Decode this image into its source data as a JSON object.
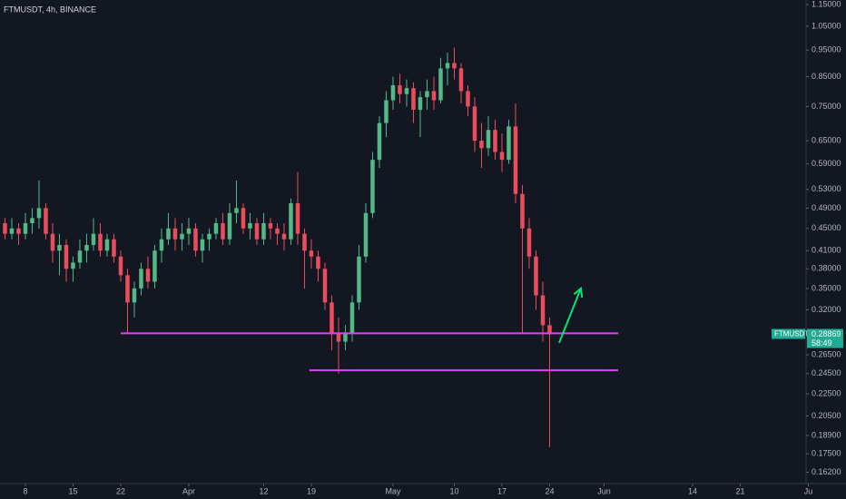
{
  "chart_data": {
    "type": "candlestick",
    "title": "FTMUSDT, 4h, BINANCE",
    "symbol": "FTMUSDT",
    "countdown": "58:49",
    "log_scale": true,
    "up_color": "#53b987",
    "down_color": "#eb4d5c",
    "xlim": [
      3.27,
      121.67
    ],
    "ylim": [
      0.1545,
      1.172
    ],
    "xticks": [
      {
        "value": 7,
        "label": "8"
      },
      {
        "value": 14,
        "label": "15"
      },
      {
        "value": 21,
        "label": "22"
      },
      {
        "value": 31,
        "label": "Apr"
      },
      {
        "value": 42,
        "label": "12"
      },
      {
        "value": 49,
        "label": "19"
      },
      {
        "value": 61,
        "label": "May"
      },
      {
        "value": 70,
        "label": "10"
      },
      {
        "value": 77,
        "label": "17"
      },
      {
        "value": 84,
        "label": "24"
      },
      {
        "value": 92,
        "label": "Jun"
      },
      {
        "value": 105,
        "label": "14"
      },
      {
        "value": 112,
        "label": "21"
      },
      {
        "value": 122,
        "label": "Ju"
      }
    ],
    "yticks": [
      {
        "value": 1.15,
        "label": "1.15000"
      },
      {
        "value": 1.05,
        "label": "1.05000"
      },
      {
        "value": 0.95,
        "label": "0.95000"
      },
      {
        "value": 0.85,
        "label": "0.85000"
      },
      {
        "value": 0.75,
        "label": "0.75000"
      },
      {
        "value": 0.65,
        "label": "0.65000"
      },
      {
        "value": 0.59,
        "label": "0.59000"
      },
      {
        "value": 0.53,
        "label": "0.53000"
      },
      {
        "value": 0.49,
        "label": "0.49000"
      },
      {
        "value": 0.45,
        "label": "0.45000"
      },
      {
        "value": 0.41,
        "label": "0.41000"
      },
      {
        "value": 0.38,
        "label": "0.38000"
      },
      {
        "value": 0.35,
        "label": "0.35000"
      },
      {
        "value": 0.32,
        "label": "0.32000"
      },
      {
        "value": 0.265,
        "label": "0.26500"
      },
      {
        "value": 0.245,
        "label": "0.24500"
      },
      {
        "value": 0.225,
        "label": "0.22500"
      },
      {
        "value": 0.205,
        "label": "0.20500"
      },
      {
        "value": 0.189,
        "label": "0.18900"
      },
      {
        "value": 0.175,
        "label": "0.17500"
      },
      {
        "value": 0.162,
        "label": "0.16200"
      }
    ],
    "x": [
      3,
      4,
      5,
      6,
      7,
      8,
      9,
      10,
      11,
      12,
      13,
      14,
      15,
      16,
      17,
      18,
      19,
      20,
      21,
      22,
      23,
      24,
      25,
      26,
      27,
      28,
      29,
      30,
      31,
      32,
      33,
      34,
      35,
      36,
      37,
      38,
      39,
      40,
      41,
      42,
      43,
      44,
      45,
      46,
      47,
      48,
      49,
      50,
      51,
      52,
      53,
      54,
      55,
      56,
      57,
      58,
      59,
      60,
      61,
      62,
      63,
      64,
      65,
      66,
      67,
      68,
      69,
      70,
      71,
      72,
      73,
      74,
      75,
      76,
      77,
      78,
      79,
      80,
      81,
      82,
      83,
      84
    ],
    "open": [
      0.46,
      0.46,
      0.44,
      0.45,
      0.44,
      0.46,
      0.47,
      0.49,
      0.44,
      0.41,
      0.42,
      0.38,
      0.39,
      0.41,
      0.42,
      0.44,
      0.41,
      0.43,
      0.4,
      0.37,
      0.33,
      0.35,
      0.38,
      0.36,
      0.41,
      0.43,
      0.45,
      0.43,
      0.44,
      0.45,
      0.41,
      0.43,
      0.44,
      0.46,
      0.43,
      0.48,
      0.49,
      0.45,
      0.46,
      0.43,
      0.46,
      0.45,
      0.44,
      0.43,
      0.5,
      0.44,
      0.41,
      0.4,
      0.38,
      0.33,
      0.29,
      0.28,
      0.29,
      0.33,
      0.4,
      0.48,
      0.6,
      0.7,
      0.77,
      0.82,
      0.79,
      0.81,
      0.74,
      0.78,
      0.8,
      0.77,
      0.88,
      0.9,
      0.88,
      0.8,
      0.75,
      0.65,
      0.63,
      0.68,
      0.62,
      0.6,
      0.69,
      0.52,
      0.45,
      0.4,
      0.34,
      0.3
    ],
    "high": [
      0.48,
      0.47,
      0.47,
      0.46,
      0.48,
      0.49,
      0.55,
      0.5,
      0.46,
      0.44,
      0.43,
      0.4,
      0.43,
      0.44,
      0.47,
      0.46,
      0.44,
      0.44,
      0.41,
      0.38,
      0.36,
      0.39,
      0.4,
      0.42,
      0.45,
      0.48,
      0.47,
      0.46,
      0.47,
      0.46,
      0.44,
      0.45,
      0.47,
      0.48,
      0.5,
      0.55,
      0.5,
      0.48,
      0.47,
      0.48,
      0.47,
      0.46,
      0.46,
      0.51,
      0.57,
      0.45,
      0.43,
      0.41,
      0.39,
      0.34,
      0.31,
      0.3,
      0.34,
      0.42,
      0.5,
      0.62,
      0.72,
      0.8,
      0.85,
      0.86,
      0.84,
      0.83,
      0.8,
      0.84,
      0.85,
      0.92,
      0.94,
      0.96,
      0.9,
      0.82,
      0.78,
      0.7,
      0.72,
      0.71,
      0.67,
      0.71,
      0.76,
      0.54,
      0.47,
      0.41,
      0.36,
      0.31
    ],
    "low": [
      0.44,
      0.43,
      0.43,
      0.42,
      0.43,
      0.44,
      0.45,
      0.43,
      0.39,
      0.37,
      0.36,
      0.36,
      0.38,
      0.39,
      0.41,
      0.4,
      0.4,
      0.39,
      0.36,
      0.29,
      0.31,
      0.34,
      0.35,
      0.35,
      0.39,
      0.42,
      0.41,
      0.41,
      0.42,
      0.4,
      0.39,
      0.41,
      0.43,
      0.42,
      0.42,
      0.46,
      0.44,
      0.43,
      0.42,
      0.42,
      0.43,
      0.42,
      0.41,
      0.42,
      0.42,
      0.35,
      0.38,
      0.36,
      0.32,
      0.27,
      0.245,
      0.27,
      0.28,
      0.32,
      0.39,
      0.47,
      0.58,
      0.66,
      0.74,
      0.76,
      0.75,
      0.7,
      0.66,
      0.74,
      0.74,
      0.76,
      0.82,
      0.84,
      0.76,
      0.72,
      0.62,
      0.58,
      0.61,
      0.6,
      0.57,
      0.59,
      0.5,
      0.29,
      0.38,
      0.32,
      0.28,
      0.18
    ],
    "close": [
      0.46,
      0.44,
      0.45,
      0.44,
      0.46,
      0.47,
      0.49,
      0.44,
      0.41,
      0.42,
      0.38,
      0.39,
      0.41,
      0.42,
      0.44,
      0.41,
      0.43,
      0.4,
      0.37,
      0.33,
      0.35,
      0.38,
      0.36,
      0.41,
      0.43,
      0.45,
      0.43,
      0.44,
      0.45,
      0.41,
      0.43,
      0.44,
      0.46,
      0.43,
      0.48,
      0.49,
      0.45,
      0.46,
      0.43,
      0.46,
      0.45,
      0.44,
      0.43,
      0.5,
      0.44,
      0.41,
      0.4,
      0.38,
      0.33,
      0.29,
      0.28,
      0.29,
      0.33,
      0.4,
      0.48,
      0.6,
      0.7,
      0.77,
      0.82,
      0.79,
      0.81,
      0.74,
      0.78,
      0.8,
      0.77,
      0.88,
      0.9,
      0.88,
      0.8,
      0.75,
      0.65,
      0.63,
      0.68,
      0.62,
      0.6,
      0.69,
      0.52,
      0.45,
      0.4,
      0.34,
      0.3,
      0.28869
    ],
    "levels": [
      {
        "value": 0.29,
        "x": [
          21,
          94.07
        ],
        "color": "#e040fb"
      },
      {
        "value": 0.2484,
        "x": [
          48.7,
          94.07
        ],
        "color": "#e040fb"
      }
    ],
    "arrow": {
      "x": [
        85.4,
        88.6
      ],
      "y": [
        0.2786,
        0.35
      ],
      "color": "#00e676"
    },
    "tag_color": "#22ab94"
  }
}
